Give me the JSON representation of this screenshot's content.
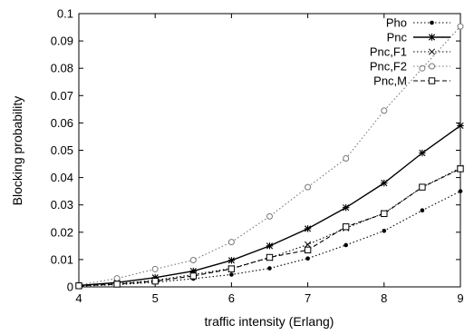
{
  "chart_data": {
    "type": "line",
    "title": "",
    "xlabel": "traffic intensity (Erlang)",
    "ylabel": "Blocking probability",
    "xlim": [
      4,
      9
    ],
    "ylim": [
      0,
      0.1
    ],
    "x_ticks": [
      "4",
      "5",
      "6",
      "7",
      "8",
      "9"
    ],
    "y_ticks": [
      "0",
      "0.01",
      "0.02",
      "0.03",
      "0.04",
      "0.05",
      "0.06",
      "0.07",
      "0.08",
      "0.09",
      "0.1"
    ],
    "grid": false,
    "legend_position": "top-right",
    "x": [
      4,
      4.5,
      5,
      5.5,
      6,
      6.5,
      7,
      7.5,
      8,
      8.5,
      9
    ],
    "series": [
      {
        "name": "Pho",
        "style": "dotted",
        "marker": "dot",
        "color": "#000000",
        "values": [
          0.0003,
          0.0008,
          0.0017,
          0.003,
          0.0045,
          0.0068,
          0.0104,
          0.0153,
          0.0205,
          0.028,
          0.035
        ]
      },
      {
        "name": "Pnc",
        "style": "solid",
        "marker": "star",
        "color": "#000000",
        "values": [
          0.0005,
          0.0016,
          0.0034,
          0.0058,
          0.0097,
          0.015,
          0.0213,
          0.029,
          0.038,
          0.049,
          0.059
        ]
      },
      {
        "name": "Pnc,F1",
        "style": "dotted",
        "marker": "x",
        "color": "#000000",
        "values": [
          0.0003,
          0.0012,
          0.0024,
          0.0045,
          0.0068,
          0.0106,
          0.0155,
          0.0215,
          0.027,
          0.0365,
          0.0435
        ]
      },
      {
        "name": "Pnc,F2",
        "style": "dotted",
        "marker": "circle",
        "color": "#777777",
        "values": [
          0.0007,
          0.0031,
          0.0065,
          0.0098,
          0.0164,
          0.0258,
          0.0365,
          0.047,
          0.0645,
          0.08,
          0.0953
        ]
      },
      {
        "name": "Pnc,M",
        "style": "dashed",
        "marker": "square",
        "color": "#000000",
        "values": [
          0.0004,
          0.001,
          0.0021,
          0.004,
          0.0066,
          0.0108,
          0.0135,
          0.022,
          0.0268,
          0.0365,
          0.0432
        ]
      }
    ]
  }
}
